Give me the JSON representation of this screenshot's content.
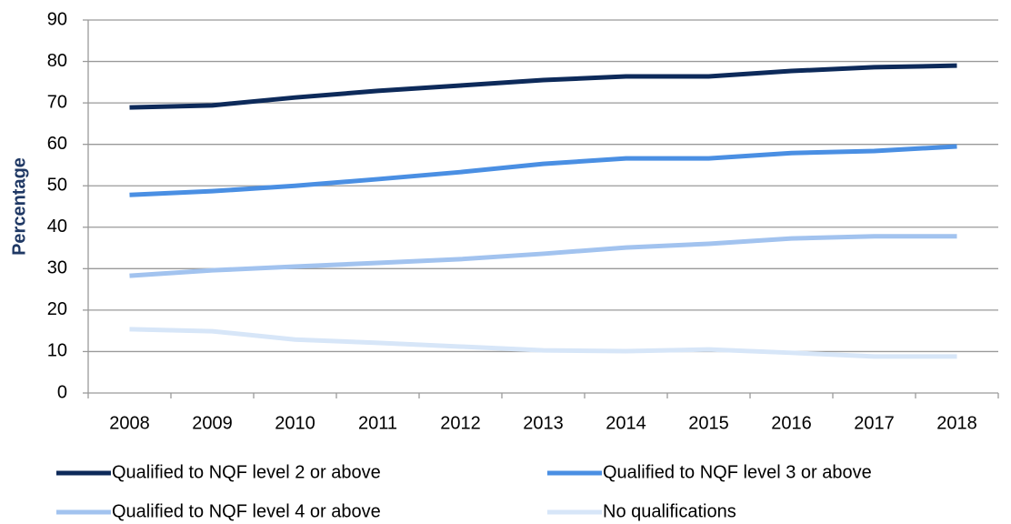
{
  "chart_data": {
    "type": "line",
    "y_label": "Percentage",
    "categories": [
      "2008",
      "2009",
      "2010",
      "2011",
      "2012",
      "2013",
      "2014",
      "2015",
      "2016",
      "2017",
      "2018"
    ],
    "series": [
      {
        "name": "Qualified to NQF level 2 or above",
        "color": "#0d2a5a",
        "values": [
          68.9,
          69.4,
          71.3,
          72.9,
          74.2,
          75.5,
          76.4,
          76.4,
          77.7,
          78.6,
          79.0
        ]
      },
      {
        "name": "Qualified to NQF level 3 or above",
        "color": "#4a8fe3",
        "values": [
          47.8,
          48.7,
          50.0,
          51.6,
          53.3,
          55.3,
          56.6,
          56.6,
          57.9,
          58.4,
          59.5
        ]
      },
      {
        "name": "Qualified to NQF level 4 or above",
        "color": "#a2c3ef",
        "values": [
          28.3,
          29.6,
          30.5,
          31.4,
          32.3,
          33.6,
          35.1,
          36.0,
          37.3,
          37.8,
          37.8
        ]
      },
      {
        "name": "No qualifications",
        "color": "#d7e6f8",
        "values": [
          15.4,
          14.9,
          12.9,
          12.1,
          11.2,
          10.3,
          10.1,
          10.5,
          9.7,
          8.8,
          8.8
        ]
      }
    ],
    "ylim": [
      0,
      90
    ],
    "yticks": [
      0,
      10,
      20,
      30,
      40,
      50,
      60,
      70,
      80,
      90
    ],
    "grid": true
  }
}
